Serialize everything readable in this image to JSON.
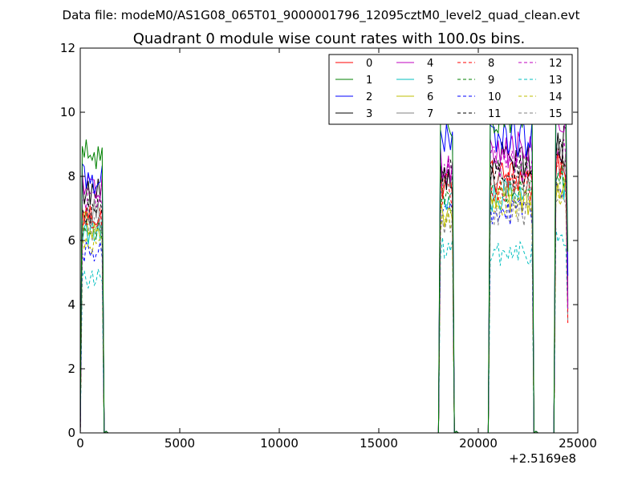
{
  "chart_data": {
    "type": "line",
    "suptitle": "Data file: modeM0/AS1G08_065T01_9000001796_12095cztM0_level2_quad_clean.evt",
    "title": "Quadrant 0 module wise count rates with 100.0s bins.",
    "xlabel": "",
    "ylabel": "",
    "x_offset_label": "+2.5169e8",
    "xlim": [
      0,
      25000
    ],
    "ylim": [
      0,
      12
    ],
    "xticks": [
      0,
      5000,
      10000,
      15000,
      20000,
      25000
    ],
    "xtick_labels": [
      "0",
      "5000",
      "10000",
      "15000",
      "20000",
      "25000"
    ],
    "yticks": [
      0,
      2,
      4,
      6,
      8,
      10,
      12
    ],
    "ytick_labels": [
      "0",
      "2",
      "4",
      "6",
      "8",
      "10",
      "12"
    ],
    "legend_position": "top-right",
    "legend_columns": 4,
    "segments": [
      {
        "start": 50,
        "end": 1150,
        "decay": [
          1250,
          1350
        ]
      },
      {
        "start": 18050,
        "end": 18750,
        "rise": 17950,
        "decay": [
          18850,
          18950
        ]
      },
      {
        "start": 20550,
        "end": 22750,
        "rise": 20450,
        "decay": [
          22850,
          22950
        ]
      },
      {
        "start": 23850,
        "end": 24450,
        "rise": 23750
      }
    ],
    "series": [
      {
        "name": "0",
        "color": "#ff0000",
        "dash": "solid",
        "levels": [
          6.8,
          7.8,
          8.0,
          8.4
        ]
      },
      {
        "name": "1",
        "color": "#008000",
        "dash": "solid",
        "levels": [
          8.6,
          9.3,
          10.0,
          10.6
        ]
      },
      {
        "name": "2",
        "color": "#0000ff",
        "dash": "solid",
        "levels": [
          8.0,
          9.0,
          9.2,
          9.8
        ]
      },
      {
        "name": "3",
        "color": "#000000",
        "dash": "solid",
        "levels": [
          7.6,
          8.0,
          8.6,
          9.0
        ]
      },
      {
        "name": "4",
        "color": "#bf00bf",
        "dash": "solid",
        "levels": [
          7.6,
          8.4,
          8.8,
          9.4
        ]
      },
      {
        "name": "5",
        "color": "#00bfbf",
        "dash": "solid",
        "levels": [
          6.3,
          7.1,
          7.4,
          7.8
        ]
      },
      {
        "name": "6",
        "color": "#bfbf00",
        "dash": "solid",
        "levels": [
          6.5,
          6.8,
          7.2,
          7.6
        ]
      },
      {
        "name": "7",
        "color": "#808080",
        "dash": "solid",
        "levels": [
          6.9,
          7.8,
          7.9,
          8.6
        ]
      },
      {
        "name": "8",
        "color": "#ff0000",
        "dash": "dashed",
        "levels": [
          6.6,
          7.5,
          7.7,
          8.2
        ]
      },
      {
        "name": "9",
        "color": "#008000",
        "dash": "dashed",
        "levels": [
          6.2,
          7.2,
          7.5,
          8.0
        ]
      },
      {
        "name": "10",
        "color": "#0000ff",
        "dash": "dashed",
        "levels": [
          5.7,
          6.7,
          6.9,
          7.5
        ]
      },
      {
        "name": "11",
        "color": "#000000",
        "dash": "dashed",
        "levels": [
          7.0,
          8.2,
          8.2,
          8.6
        ]
      },
      {
        "name": "12",
        "color": "#bf00bf",
        "dash": "dashed",
        "levels": [
          7.2,
          8.1,
          8.4,
          8.8
        ]
      },
      {
        "name": "13",
        "color": "#00bfbf",
        "dash": "dashed",
        "levels": [
          4.8,
          5.7,
          5.6,
          6.0
        ]
      },
      {
        "name": "14",
        "color": "#bfbf00",
        "dash": "dashed",
        "levels": [
          6.0,
          6.6,
          7.0,
          7.6
        ]
      },
      {
        "name": "15",
        "color": "#808080",
        "dash": "dashed",
        "levels": [
          6.3,
          6.6,
          6.9,
          7.4
        ]
      }
    ]
  }
}
